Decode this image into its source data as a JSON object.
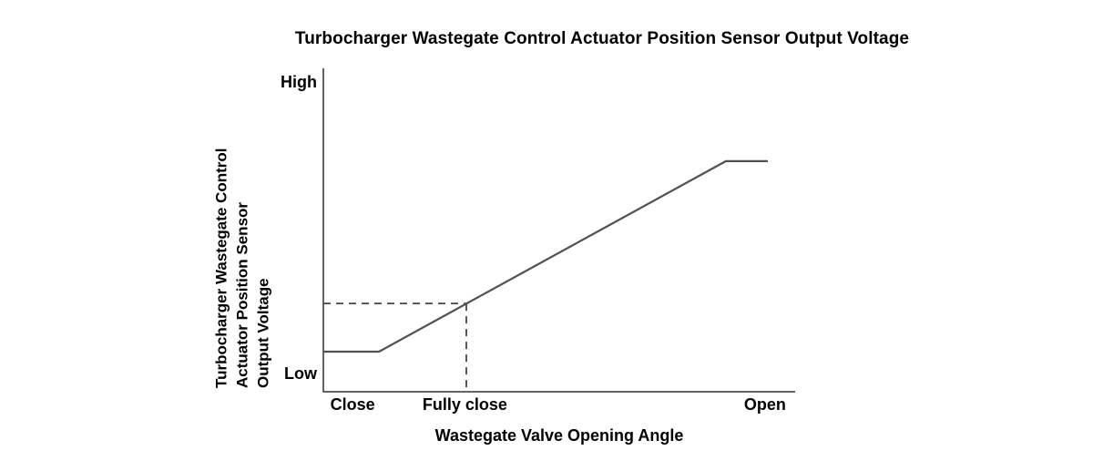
{
  "chart_data": {
    "type": "line",
    "title": "Turbocharger Wastegate Control Actuator Position Sensor Output Voltage",
    "xlabel": "Wastegate Valve Opening Angle",
    "ylabel": "Turbocharger Wastegate Control Actuator Position Sensor Output Voltage",
    "ylabel_lines": [
      "Turbocharger Wastegate Control",
      "Actuator Position Sensor",
      "Output Voltage"
    ],
    "x_ticks": [
      {
        "label": "Close",
        "x": 0.062
      },
      {
        "label": "Fully close",
        "x": 0.3
      },
      {
        "label": "Open",
        "x": 0.936
      }
    ],
    "y_ticks": [
      {
        "label": "High",
        "y": 0.958
      },
      {
        "label": "Low",
        "y": 0.056
      }
    ],
    "axis_range": {
      "x": [
        "Close",
        "Open"
      ],
      "y": [
        "Low",
        "High"
      ]
    },
    "grid": false,
    "legend": false,
    "series": [
      {
        "name": "Actuator Position Sensor Output Voltage",
        "points": [
          [
            0.0,
            0.124
          ],
          [
            0.118,
            0.124
          ],
          [
            0.853,
            0.713
          ],
          [
            0.942,
            0.713
          ]
        ],
        "description": "Output voltage is low and flat near Close, rises linearly past the fully-close point, and plateaus high just before Open"
      }
    ],
    "reference_lines": [
      {
        "name": "fully-close-voltage-level",
        "style": "dashed",
        "points": [
          [
            0.0,
            0.273
          ],
          [
            0.303,
            0.273
          ]
        ]
      },
      {
        "name": "fully-close-position",
        "style": "dashed",
        "points": [
          [
            0.303,
            0.273
          ],
          [
            0.303,
            0.0
          ]
        ]
      }
    ],
    "colors": {
      "line": "#56504d",
      "dashed": "#474747",
      "axis": "#322d31",
      "text": "#000000",
      "background": "#ffffff"
    }
  }
}
